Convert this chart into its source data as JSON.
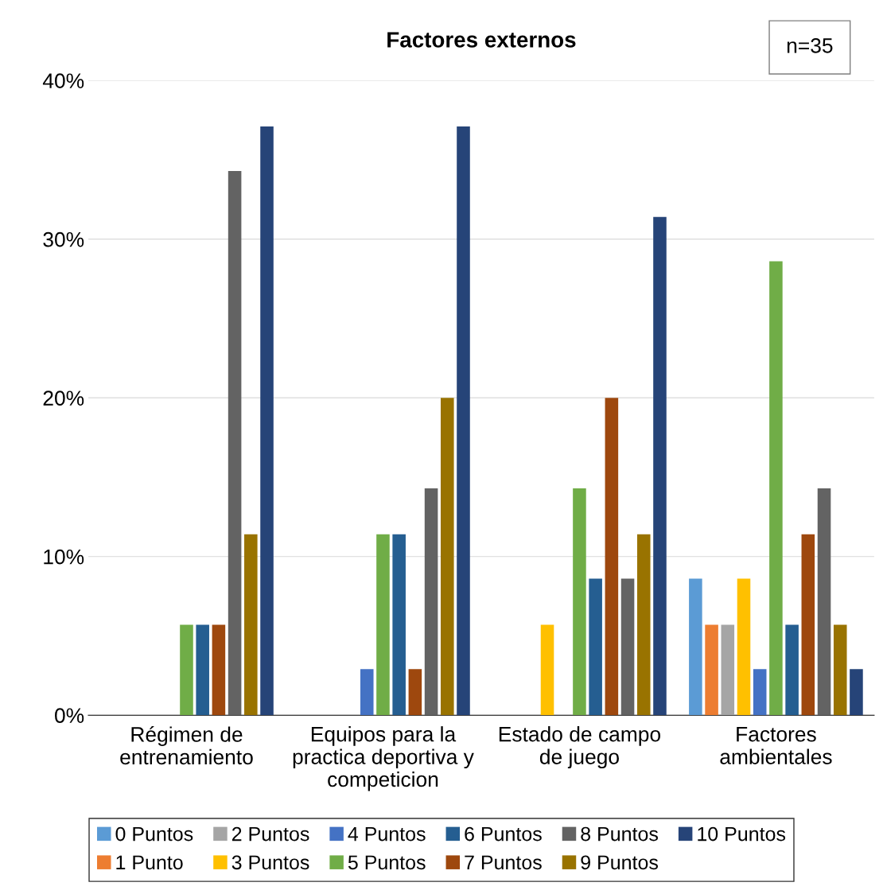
{
  "chart_data": {
    "type": "bar",
    "title": "Factores externos",
    "categories": [
      "Régimen de\nentrenamiento",
      "Equipos para la\npractica deportiva y\ncompeticion",
      "Estado de campo\nde juego",
      "Factores\nambientales"
    ],
    "series": [
      {
        "name": "0 Puntos",
        "color": "#5b9bd5",
        "values": [
          0,
          0,
          0,
          8.6
        ]
      },
      {
        "name": "1 Punto",
        "color": "#ed7d31",
        "values": [
          0,
          0,
          0,
          5.7
        ]
      },
      {
        "name": "2 Puntos",
        "color": "#a5a5a5",
        "values": [
          0,
          0,
          0,
          5.7
        ]
      },
      {
        "name": "3 Puntos",
        "color": "#ffc000",
        "values": [
          0,
          0,
          5.7,
          8.6
        ]
      },
      {
        "name": "4 Puntos",
        "color": "#4472c4",
        "values": [
          0,
          2.9,
          0,
          2.9
        ]
      },
      {
        "name": "5 Puntos",
        "color": "#70ad47",
        "values": [
          5.7,
          11.4,
          14.3,
          28.6
        ]
      },
      {
        "name": "6 Puntos",
        "color": "#255e91",
        "values": [
          5.7,
          11.4,
          8.6,
          5.7
        ]
      },
      {
        "name": "7 Puntos",
        "color": "#9e480e",
        "values": [
          5.7,
          2.9,
          20.0,
          11.4
        ]
      },
      {
        "name": "8 Puntos",
        "color": "#636363",
        "values": [
          34.3,
          14.3,
          8.6,
          14.3
        ]
      },
      {
        "name": "9 Puntos",
        "color": "#997300",
        "values": [
          11.4,
          20.0,
          11.4,
          5.7
        ]
      },
      {
        "name": "10 Puntos",
        "color": "#264478",
        "values": [
          37.1,
          37.1,
          31.4,
          2.9
        ]
      }
    ],
    "ylim": [
      0,
      40
    ],
    "yticks": [
      {
        "value": 0,
        "label": "0%"
      },
      {
        "value": 10,
        "label": "10%"
      },
      {
        "value": 20,
        "label": "20%"
      },
      {
        "value": 30,
        "label": "30%"
      },
      {
        "value": 40,
        "label": "40%"
      }
    ],
    "grid": "y",
    "legend": "bottom",
    "annotations": [
      "n=35"
    ]
  }
}
